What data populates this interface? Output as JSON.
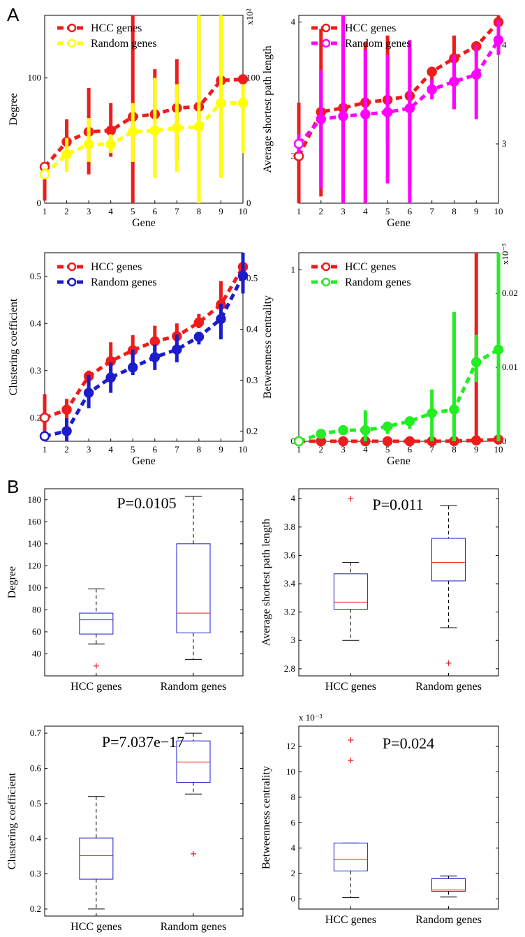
{
  "figure_labels": {
    "a": "A",
    "b": "B"
  },
  "chart_data": [
    {
      "id": "a1",
      "type": "line",
      "xlabel": "Gene",
      "ylabel": "Degree",
      "x": [
        1,
        2,
        3,
        4,
        5,
        6,
        7,
        8,
        9,
        10
      ],
      "xlim": [
        1,
        10
      ],
      "ylim": [
        0,
        150
      ],
      "yticks": [
        0,
        100
      ],
      "right_ylim": [
        0,
        150
      ],
      "right_yticks": [
        0,
        100
      ],
      "right_exponent": "x10²",
      "series": [
        {
          "name": "HCC genes",
          "color": "#ee1c1c",
          "axis": "left",
          "values": [
            29,
            49,
            57,
            58,
            69,
            71,
            76,
            77,
            98,
            99
          ],
          "err_low": [
            2,
            28,
            23,
            37,
            0,
            68,
            35,
            58,
            98,
            99
          ],
          "err_high": [
            29,
            67,
            92,
            80,
            150,
            107,
            115,
            150,
            98,
            99
          ]
        },
        {
          "name": "Random genes",
          "color": "#ffff00",
          "axis": "right",
          "values": [
            23,
            39,
            47,
            47,
            57,
            58,
            60,
            61,
            80,
            80
          ],
          "err_low": [
            20,
            25,
            33,
            40,
            33,
            20,
            25,
            0,
            20,
            40
          ],
          "err_high": [
            28,
            52,
            68,
            55,
            80,
            100,
            95,
            150,
            150,
            95
          ]
        }
      ]
    },
    {
      "id": "a2",
      "type": "line",
      "xlabel": "Gene",
      "ylabel": "Average shortest path length",
      "x": [
        1,
        2,
        3,
        4,
        5,
        6,
        7,
        8,
        9,
        10
      ],
      "xlim": [
        1,
        10
      ],
      "ylim": [
        2.65,
        4.05
      ],
      "yticks": [
        3,
        4
      ],
      "right_ylim": [
        2.4,
        4.3
      ],
      "right_yticks": [
        3,
        4
      ],
      "series": [
        {
          "name": "HCC genes",
          "color": "#ee1c1c",
          "axis": "left",
          "values": [
            3.0,
            3.33,
            3.36,
            3.4,
            3.42,
            3.45,
            3.63,
            3.73,
            3.82,
            4.0
          ],
          "err_low": [
            2.65,
            2.7,
            2.65,
            2.65,
            3.1,
            2.75,
            3.55,
            3.6,
            3.75,
            3.95
          ],
          "err_high": [
            3.4,
            3.95,
            4.05,
            3.85,
            3.9,
            3.85,
            3.65,
            3.9,
            3.85,
            4.05
          ]
        },
        {
          "name": "Random genes",
          "color": "#ff00ff",
          "axis": "right",
          "values": [
            3.0,
            3.25,
            3.28,
            3.3,
            3.32,
            3.36,
            3.55,
            3.63,
            3.7,
            4.05
          ],
          "err_low": [
            2.9,
            2.55,
            2.4,
            2.4,
            2.6,
            2.4,
            3.45,
            3.35,
            3.25,
            3.9
          ],
          "err_high": [
            3.1,
            3.75,
            4.3,
            3.95,
            3.9,
            4.05,
            3.65,
            3.9,
            4.0,
            4.25
          ]
        }
      ]
    },
    {
      "id": "a3",
      "type": "line",
      "xlabel": "Gene",
      "ylabel": "Clustering coefficient",
      "x": [
        1,
        2,
        3,
        4,
        5,
        6,
        7,
        8,
        9,
        10
      ],
      "xlim": [
        1,
        10
      ],
      "ylim": [
        0.15,
        0.55
      ],
      "yticks": [
        0.2,
        0.3,
        0.4,
        0.5
      ],
      "right_ylim": [
        0.18,
        0.55
      ],
      "right_yticks": [
        0.2,
        0.3,
        0.4,
        0.5
      ],
      "series": [
        {
          "name": "HCC genes",
          "color": "#ee1c1c",
          "axis": "left",
          "values": [
            0.2,
            0.217,
            0.288,
            0.32,
            0.343,
            0.362,
            0.373,
            0.402,
            0.44,
            0.52
          ],
          "err_low": [
            0.15,
            0.19,
            0.27,
            0.28,
            0.31,
            0.34,
            0.35,
            0.39,
            0.41,
            0.51
          ],
          "err_high": [
            0.25,
            0.24,
            0.3,
            0.36,
            0.375,
            0.395,
            0.4,
            0.42,
            0.49,
            0.53
          ]
        },
        {
          "name": "Random genes",
          "color": "#1c1ccc",
          "axis": "right",
          "values": [
            0.19,
            0.2,
            0.275,
            0.305,
            0.325,
            0.345,
            0.36,
            0.385,
            0.42,
            0.505
          ],
          "err_low": [
            0.18,
            0.18,
            0.245,
            0.275,
            0.31,
            0.32,
            0.335,
            0.37,
            0.38,
            0.47
          ],
          "err_high": [
            0.2,
            0.225,
            0.31,
            0.335,
            0.36,
            0.37,
            0.39,
            0.395,
            0.45,
            0.55
          ]
        }
      ]
    },
    {
      "id": "a4",
      "type": "line",
      "xlabel": "Gene",
      "ylabel": "Betweenness centrality",
      "x": [
        1,
        2,
        3,
        4,
        5,
        6,
        7,
        8,
        9,
        10
      ],
      "xlim": [
        1,
        10
      ],
      "ylim": [
        0,
        1.1
      ],
      "yticks": [
        0,
        1
      ],
      "right_ylim": [
        0,
        0.0255
      ],
      "right_yticks": [
        0,
        0.01,
        0.02
      ],
      "right_exponent": "x10⁻³",
      "series": [
        {
          "name": "HCC genes",
          "color": "#ee1c1c",
          "axis": "left",
          "values": [
            0,
            0,
            0,
            0,
            0,
            0,
            0,
            0.001,
            0.005,
            0.01
          ],
          "err_low": [
            0,
            0,
            0,
            0,
            0,
            0,
            0,
            0,
            0,
            0
          ],
          "err_high": [
            0,
            0,
            0,
            0,
            0,
            0,
            0,
            0,
            1.1,
            0.01
          ]
        },
        {
          "name": "Random genes",
          "color": "#22ee22",
          "axis": "right",
          "values": [
            0,
            0.001,
            0.0015,
            0.0015,
            0.002,
            0.0027,
            0.0038,
            0.0043,
            0.0107,
            0.0124
          ],
          "err_low": [
            0,
            0.0005,
            0.001,
            0,
            0.001,
            0.0017,
            0,
            0,
            0.008,
            0
          ],
          "err_high": [
            0,
            0.0012,
            0.0017,
            0.0042,
            0.0026,
            0.0033,
            0.007,
            0.0175,
            0.0144,
            0.0255
          ]
        }
      ]
    },
    {
      "id": "b1",
      "type": "box",
      "ylabel": "Degree",
      "annotation": "P=0.0105",
      "ylim": [
        20,
        190
      ],
      "yticks": [
        40,
        60,
        80,
        100,
        120,
        140,
        160,
        180
      ],
      "categories": [
        "HCC genes",
        "Random genes"
      ],
      "boxes": [
        {
          "whisker_low": 49,
          "q1": 58,
          "median": 71,
          "q3": 77,
          "whisker_high": 99,
          "outliers": [
            29
          ]
        },
        {
          "whisker_low": 35,
          "q1": 59,
          "median": 77,
          "q3": 140,
          "whisker_high": 183,
          "outliers": []
        }
      ]
    },
    {
      "id": "b2",
      "type": "box",
      "ylabel": "Average shortest path length",
      "annotation": "P=0.011",
      "ylim": [
        2.75,
        4.07
      ],
      "yticks": [
        2.8,
        3,
        3.2,
        3.4,
        3.6,
        3.8,
        4
      ],
      "categories": [
        "HCC genes",
        "Random genes"
      ],
      "boxes": [
        {
          "whisker_low": 3.0,
          "q1": 3.22,
          "median": 3.27,
          "q3": 3.47,
          "whisker_high": 3.55,
          "outliers": [
            4.0
          ]
        },
        {
          "whisker_low": 3.09,
          "q1": 3.42,
          "median": 3.55,
          "q3": 3.72,
          "whisker_high": 3.95,
          "outliers": [
            2.84
          ]
        }
      ]
    },
    {
      "id": "b3",
      "type": "box",
      "ylabel": "Clustering coefficient",
      "annotation": "P=7.037e−17",
      "ylim": [
        0.18,
        0.72
      ],
      "yticks": [
        0.2,
        0.3,
        0.4,
        0.5,
        0.6,
        0.7
      ],
      "categories": [
        "HCC genes",
        "Random genes"
      ],
      "boxes": [
        {
          "whisker_low": 0.2,
          "q1": 0.285,
          "median": 0.352,
          "q3": 0.402,
          "whisker_high": 0.52,
          "outliers": []
        },
        {
          "whisker_low": 0.527,
          "q1": 0.56,
          "median": 0.618,
          "q3": 0.678,
          "whisker_high": 0.7,
          "outliers": [
            0.357
          ]
        }
      ]
    },
    {
      "id": "b4",
      "type": "box",
      "ylabel": "Betweenness centrality",
      "annotation": "P=0.024",
      "exponent": "x 10⁻³",
      "ylim": [
        -0.8,
        13.6
      ],
      "yticks": [
        0,
        2,
        4,
        6,
        8,
        10,
        12
      ],
      "categories": [
        "HCC genes",
        "Random genes"
      ],
      "boxes": [
        {
          "whisker_low": 0.1,
          "q1": 2.2,
          "median": 3.1,
          "q3": 4.4,
          "whisker_high": 4.4,
          "outliers": [
            12.5,
            10.9
          ]
        },
        {
          "whisker_low": 0.15,
          "q1": 0.6,
          "median": 0.7,
          "q3": 1.6,
          "whisker_high": 1.8,
          "outliers": []
        }
      ]
    }
  ]
}
